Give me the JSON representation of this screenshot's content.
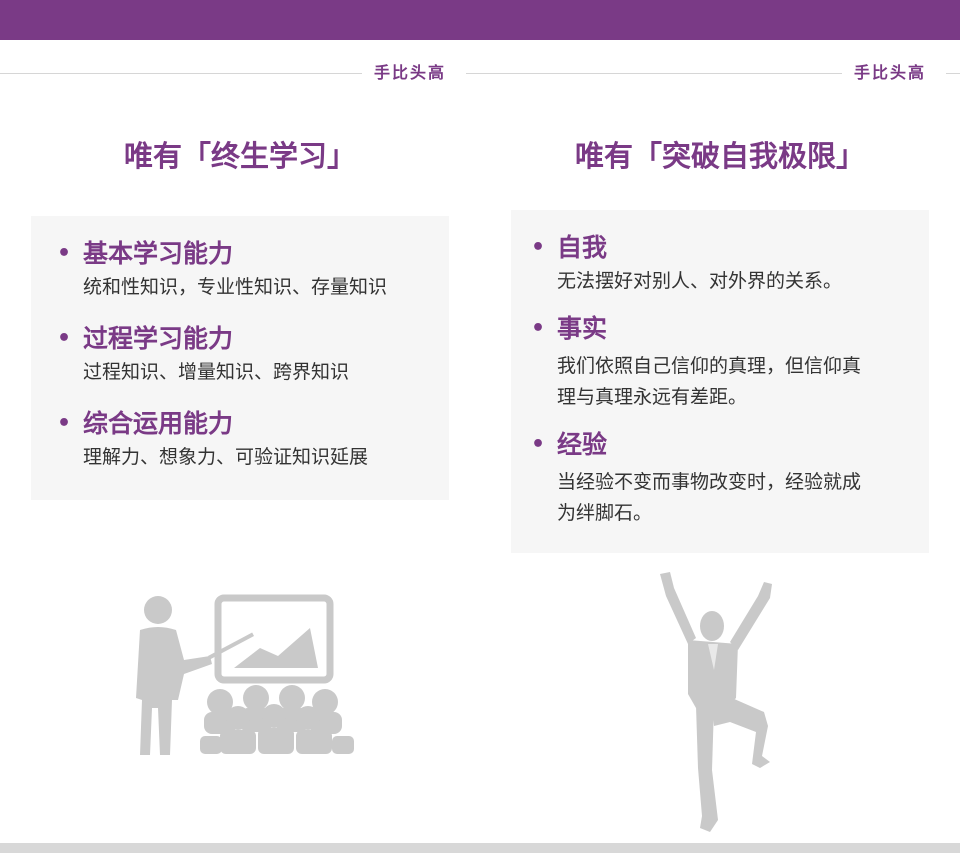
{
  "colors": {
    "accent": "#7a3a86",
    "panel_bg": "#f6f6f6",
    "figure_gray": "#c9c9c9"
  },
  "brand": {
    "left": "手比头高",
    "right": "手比头高"
  },
  "left": {
    "title": "唯有「终生学习」",
    "items": [
      {
        "head": "基本学习能力",
        "desc": [
          "统和性知识，专业性知识、存量知识"
        ]
      },
      {
        "head": "过程学习能力",
        "desc": [
          "过程知识、增量知识、跨界知识"
        ]
      },
      {
        "head": "综合运用能力",
        "desc": [
          "理解力、想象力、可验证知识延展"
        ]
      }
    ],
    "illustration": "presenter-with-chart-and-audience-icon"
  },
  "right": {
    "title": "唯有「突破自我极限」",
    "items": [
      {
        "head": "自我",
        "desc": [
          "无法摆好对别人、对外界的关系。"
        ]
      },
      {
        "head": "事实",
        "desc": [
          "我们依照自己信仰的真理，但信仰真",
          "理与真理永远有差距。"
        ]
      },
      {
        "head": "经验",
        "desc": [
          "当经验不变而事物改变时，经验就成",
          "为绊脚石。"
        ]
      }
    ],
    "illustration": "cheering-businessman-icon"
  }
}
